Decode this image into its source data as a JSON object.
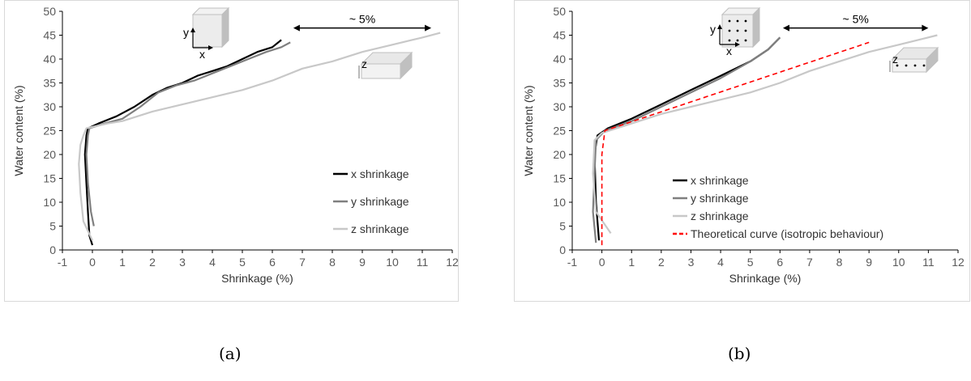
{
  "captions": [
    "(a)",
    "(b)"
  ],
  "chart_data": [
    {
      "type": "line",
      "panel": "(a)",
      "xlabel": "Shrinkage (%)",
      "ylabel": "Water content (%)",
      "xlim": [
        -1,
        12
      ],
      "ylim": [
        0,
        50
      ],
      "xticks": [
        -1,
        0,
        1,
        2,
        3,
        4,
        5,
        6,
        7,
        8,
        9,
        10,
        11,
        12
      ],
      "yticks": [
        0,
        5,
        10,
        15,
        20,
        25,
        30,
        35,
        40,
        45,
        50
      ],
      "legend_position": "right",
      "annotation": "~ 5%",
      "annotation_arrow_x": [
        6.7,
        11.3
      ],
      "annotation_arrow_y": 46.5,
      "inset_labels": {
        "upper": [
          "y",
          "x"
        ],
        "lower": [
          "z"
        ]
      },
      "series": [
        {
          "name": "x shrinkage",
          "color": "#000000",
          "x": [
            0,
            -0.1,
            -0.15,
            -0.2,
            -0.25,
            -0.2,
            -0.15,
            0.2,
            0.8,
            1.4,
            2.0,
            2.5,
            3.0,
            3.5,
            4.0,
            4.5,
            5.0,
            5.5,
            6.0,
            6.3
          ],
          "y": [
            1,
            3,
            8,
            14,
            20,
            24,
            25.5,
            26.5,
            28,
            30,
            32.5,
            34,
            35,
            36.5,
            37.5,
            38.5,
            40,
            41.5,
            42.5,
            44
          ]
        },
        {
          "name": "y shrinkage",
          "color": "#7f7f7f",
          "x": [
            0.05,
            -0.05,
            -0.15,
            -0.2,
            -0.15,
            -0.1,
            0.4,
            1.0,
            1.6,
            2.2,
            2.8,
            3.4,
            4.0,
            4.6,
            5.2,
            5.8,
            6.3,
            6.6
          ],
          "y": [
            5,
            8,
            14,
            20,
            24,
            25.5,
            26.5,
            27.5,
            30,
            33,
            34.5,
            35.5,
            37,
            38.5,
            40,
            41.5,
            42.5,
            43.5
          ]
        },
        {
          "name": "z shrinkage",
          "color": "#c8c8c8",
          "x": [
            0,
            -0.3,
            -0.4,
            -0.45,
            -0.4,
            -0.3,
            -0.2,
            0.5,
            1.0,
            2.0,
            3.0,
            4.0,
            5.0,
            6.0,
            7.0,
            8.0,
            9.0,
            10.0,
            11.0,
            11.6
          ],
          "y": [
            2,
            6,
            12,
            18,
            22,
            24,
            25.5,
            26.5,
            27,
            29,
            30.5,
            32,
            33.5,
            35.5,
            38,
            39.5,
            41.5,
            43,
            44.5,
            45.5
          ]
        }
      ]
    },
    {
      "type": "line",
      "panel": "(b)",
      "xlabel": "Shrinkage (%)",
      "ylabel": "Water content (%)",
      "xlim": [
        -1,
        12
      ],
      "ylim": [
        0,
        50
      ],
      "xticks": [
        -1,
        0,
        1,
        2,
        3,
        4,
        5,
        6,
        7,
        8,
        9,
        10,
        11,
        12
      ],
      "yticks": [
        0,
        5,
        10,
        15,
        20,
        25,
        30,
        35,
        40,
        45,
        50
      ],
      "legend_position": "bottom-right",
      "annotation": "~ 5%",
      "annotation_arrow_x": [
        6.1,
        11.0
      ],
      "annotation_arrow_y": 46.5,
      "inset_labels": {
        "upper": [
          "y",
          "x"
        ],
        "lower": [
          "z"
        ]
      },
      "series": [
        {
          "name": "x shrinkage",
          "color": "#000000",
          "x": [
            -0.1,
            -0.2,
            -0.25,
            -0.15,
            0.2,
            1.0,
            2.0,
            3.0,
            4.0,
            5.0,
            5.6,
            6.0
          ],
          "y": [
            2,
            10,
            20,
            24,
            25.5,
            27.5,
            30.5,
            33.5,
            36.5,
            39.5,
            42,
            44.5
          ]
        },
        {
          "name": "y shrinkage",
          "color": "#7f7f7f",
          "x": [
            -0.2,
            -0.3,
            -0.25,
            -0.2,
            0.1,
            1.0,
            2.0,
            3.0,
            4.0,
            5.0,
            5.6,
            6.0
          ],
          "y": [
            1.5,
            8,
            16,
            23,
            25,
            27,
            30,
            33,
            36,
            39.5,
            42,
            44.5
          ]
        },
        {
          "name": "z shrinkage",
          "color": "#c8c8c8",
          "x": [
            0.3,
            -0.2,
            -0.3,
            -0.25,
            0.0,
            1.0,
            2.0,
            3.0,
            4.0,
            5.0,
            6.0,
            7.0,
            8.0,
            9.0,
            10.0,
            11.3
          ],
          "y": [
            3.5,
            8,
            16,
            23,
            24.5,
            26.5,
            28.5,
            30,
            31.5,
            33,
            35,
            37.5,
            39.5,
            41.5,
            43,
            45
          ]
        },
        {
          "name": "Theoretical curve (isotropic behaviour)",
          "color": "#ff0000",
          "dashed": true,
          "x": [
            0,
            0,
            0.1,
            9.0
          ],
          "y": [
            1,
            20,
            25,
            43.5
          ]
        }
      ]
    }
  ]
}
